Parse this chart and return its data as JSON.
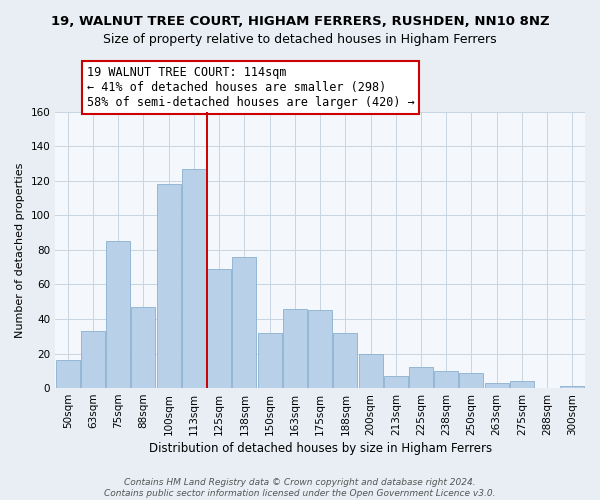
{
  "title": "19, WALNUT TREE COURT, HIGHAM FERRERS, RUSHDEN, NN10 8NZ",
  "subtitle": "Size of property relative to detached houses in Higham Ferrers",
  "xlabel": "Distribution of detached houses by size in Higham Ferrers",
  "ylabel": "Number of detached properties",
  "categories": [
    "50sqm",
    "63sqm",
    "75sqm",
    "88sqm",
    "100sqm",
    "113sqm",
    "125sqm",
    "138sqm",
    "150sqm",
    "163sqm",
    "175sqm",
    "188sqm",
    "200sqm",
    "213sqm",
    "225sqm",
    "238sqm",
    "250sqm",
    "263sqm",
    "275sqm",
    "288sqm",
    "300sqm"
  ],
  "values": [
    16,
    33,
    85,
    47,
    118,
    127,
    69,
    76,
    32,
    46,
    45,
    32,
    20,
    7,
    12,
    10,
    9,
    3,
    4,
    0,
    1
  ],
  "bar_color": "#b8d0e8",
  "bar_edge_color": "#8ab0d0",
  "vline_after_index": 5,
  "vline_color": "#cc0000",
  "annotation_lines": [
    "19 WALNUT TREE COURT: 114sqm",
    "← 41% of detached houses are smaller (298)",
    "58% of semi-detached houses are larger (420) →"
  ],
  "ylim": [
    0,
    160
  ],
  "yticks": [
    0,
    20,
    40,
    60,
    80,
    100,
    120,
    140,
    160
  ],
  "footer1": "Contains HM Land Registry data © Crown copyright and database right 2024.",
  "footer2": "Contains public sector information licensed under the Open Government Licence v3.0.",
  "background_color": "#e8eef4",
  "plot_background_color": "#f4f8fc",
  "grid_color": "#c8d4e0",
  "title_fontsize": 9.5,
  "xlabel_fontsize": 8.5,
  "ylabel_fontsize": 8,
  "tick_fontsize": 7.5,
  "footer_fontsize": 6.5,
  "ann_fontsize": 8.5
}
